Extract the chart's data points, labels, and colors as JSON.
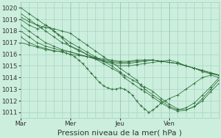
{
  "bg_color": "#cceedd",
  "grid_color": "#99ccbb",
  "line_color": "#2d6e3a",
  "xlabel": "Pression niveau de la mer( hPa )",
  "xlabel_fontsize": 8,
  "tick_fontsize": 6.5,
  "ylim": [
    1010.5,
    1020.5
  ],
  "yticks": [
    1011,
    1012,
    1013,
    1014,
    1015,
    1016,
    1017,
    1018,
    1019,
    1020
  ],
  "day_labels": [
    "Mar",
    "Mer",
    "Jeu",
    "Ven"
  ],
  "day_positions": [
    0,
    48,
    96,
    144
  ],
  "total_hours": 192,
  "series": [
    {
      "x": [
        0,
        8,
        16,
        24,
        32,
        40,
        48,
        56,
        64,
        72,
        80,
        88,
        96,
        100,
        108,
        116,
        120,
        128,
        136,
        144,
        152,
        160,
        168,
        176,
        184,
        192
      ],
      "y": [
        1020.0,
        1019.5,
        1019.0,
        1018.5,
        1018.0,
        1017.5,
        1017.0,
        1016.6,
        1016.2,
        1015.8,
        1015.4,
        1015.0,
        1014.5,
        1014.2,
        1013.8,
        1013.4,
        1013.0,
        1012.5,
        1012.0,
        1011.5,
        1011.2,
        1011.4,
        1011.8,
        1012.5,
        1013.2,
        1014.0
      ]
    },
    {
      "x": [
        0,
        8,
        16,
        24,
        32,
        40,
        48,
        56,
        64,
        72,
        80,
        88,
        96,
        100,
        108,
        116,
        120,
        128,
        136,
        144,
        152,
        160,
        168,
        176,
        184,
        192
      ],
      "y": [
        1019.5,
        1019.0,
        1018.5,
        1018.0,
        1017.5,
        1017.0,
        1016.7,
        1016.4,
        1016.0,
        1015.6,
        1015.2,
        1014.8,
        1014.4,
        1014.0,
        1013.5,
        1013.0,
        1012.8,
        1012.3,
        1011.8,
        1011.4,
        1011.1,
        1011.2,
        1011.5,
        1012.2,
        1013.0,
        1013.8
      ]
    },
    {
      "x": [
        0,
        8,
        16,
        24,
        32,
        40,
        48,
        56,
        64,
        72,
        80,
        88,
        96,
        104,
        112,
        116,
        120,
        128,
        136,
        144,
        152,
        160,
        168,
        176,
        184,
        192
      ],
      "y": [
        1019.2,
        1018.8,
        1018.5,
        1018.3,
        1018.2,
        1018.0,
        1017.8,
        1017.3,
        1016.8,
        1016.3,
        1015.8,
        1015.3,
        1014.8,
        1014.3,
        1013.8,
        1013.3,
        1013.2,
        1012.8,
        1012.2,
        1011.7,
        1011.3,
        1011.2,
        1011.5,
        1012.0,
        1012.8,
        1013.5
      ]
    },
    {
      "x": [
        0,
        8,
        16,
        20,
        24,
        28,
        32,
        36,
        40,
        44,
        48,
        56,
        64,
        72,
        80,
        88,
        96,
        104,
        112,
        120,
        128,
        136,
        144,
        152,
        160,
        168,
        176,
        184,
        192
      ],
      "y": [
        1019.0,
        1018.5,
        1018.2,
        1018.3,
        1018.5,
        1018.3,
        1018.0,
        1017.7,
        1017.4,
        1017.0,
        1016.7,
        1016.3,
        1016.0,
        1015.7,
        1015.4,
        1015.2,
        1015.0,
        1015.0,
        1015.1,
        1015.2,
        1015.3,
        1015.4,
        1015.5,
        1015.3,
        1015.0,
        1014.8,
        1014.5,
        1014.3,
        1014.2
      ]
    },
    {
      "x": [
        0,
        8,
        16,
        24,
        32,
        40,
        48,
        56,
        64,
        72,
        80,
        88,
        96,
        104,
        112,
        120,
        128,
        136,
        144,
        152,
        160,
        168,
        176,
        184,
        192
      ],
      "y": [
        1018.5,
        1018.0,
        1017.5,
        1017.0,
        1016.7,
        1016.4,
        1016.2,
        1016.0,
        1015.8,
        1015.6,
        1015.4,
        1015.3,
        1015.2,
        1015.2,
        1015.3,
        1015.4,
        1015.5,
        1015.4,
        1015.3,
        1015.2,
        1015.0,
        1014.8,
        1014.6,
        1014.4,
        1014.2
      ]
    },
    {
      "x": [
        0,
        8,
        16,
        24,
        32,
        40,
        48,
        56,
        64,
        72,
        80,
        88,
        96,
        104,
        112,
        120,
        128,
        136,
        144,
        152,
        160,
        168,
        176,
        184,
        192
      ],
      "y": [
        1018.0,
        1017.5,
        1017.0,
        1016.7,
        1016.5,
        1016.3,
        1016.2,
        1016.0,
        1015.8,
        1015.6,
        1015.5,
        1015.4,
        1015.3,
        1015.3,
        1015.4,
        1015.5,
        1015.5,
        1015.4,
        1015.3,
        1015.2,
        1015.0,
        1014.8,
        1014.6,
        1014.4,
        1014.2
      ]
    },
    {
      "x": [
        0,
        8,
        16,
        24,
        32,
        40,
        48,
        56,
        64,
        72,
        80,
        88,
        96,
        104,
        112,
        120,
        128,
        136,
        144,
        152,
        160,
        168,
        176,
        184,
        192
      ],
      "y": [
        1017.5,
        1017.0,
        1016.7,
        1016.5,
        1016.3,
        1016.2,
        1016.0,
        1015.9,
        1015.8,
        1015.7,
        1015.6,
        1015.5,
        1015.4,
        1015.4,
        1015.5,
        1015.5,
        1015.5,
        1015.4,
        1015.3,
        1015.2,
        1015.0,
        1014.8,
        1014.6,
        1014.4,
        1014.2
      ]
    },
    {
      "x": [
        0,
        8,
        16,
        24,
        32,
        40,
        44,
        48,
        52,
        56,
        60,
        64,
        68,
        72,
        76,
        80,
        84,
        88,
        92,
        96,
        100,
        104,
        108,
        112,
        116,
        120,
        124,
        128,
        132,
        136,
        140,
        144,
        152,
        160,
        168,
        176,
        184,
        192
      ],
      "y": [
        1017.0,
        1016.8,
        1016.6,
        1016.4,
        1016.3,
        1016.2,
        1016.1,
        1016.0,
        1015.8,
        1015.5,
        1015.2,
        1014.8,
        1014.4,
        1014.0,
        1013.6,
        1013.3,
        1013.1,
        1013.0,
        1013.0,
        1013.1,
        1013.0,
        1012.8,
        1012.5,
        1012.0,
        1011.6,
        1011.3,
        1011.0,
        1011.2,
        1011.5,
        1011.8,
        1012.0,
        1012.2,
        1012.5,
        1013.0,
        1013.5,
        1014.0,
        1014.2,
        1014.0
      ]
    }
  ]
}
